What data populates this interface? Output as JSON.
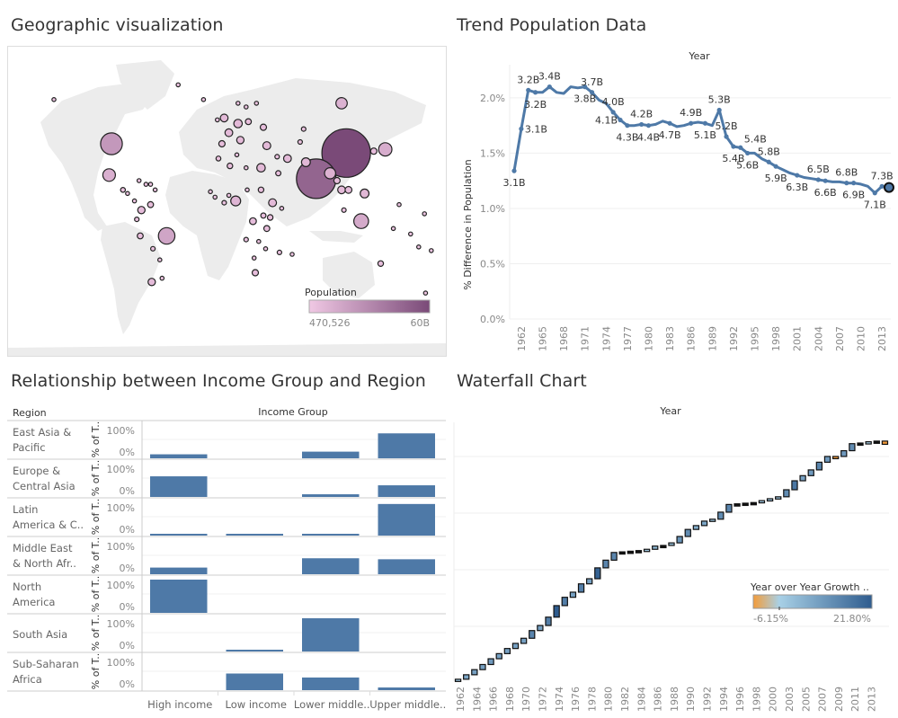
{
  "geo": {
    "title": "Geographic visualization",
    "legend": {
      "title": "Population",
      "min_label": "470,526",
      "max_label": "60B",
      "color_low": "#f0c8e4",
      "color_high": "#7a4a78"
    },
    "bubbles": [
      {
        "lon": -150,
        "lat": 64,
        "pop": 0.3
      },
      {
        "lon": -100,
        "lat": 40,
        "pop": 12
      },
      {
        "lon": -102,
        "lat": 23,
        "pop": 4
      },
      {
        "lon": -90,
        "lat": 15,
        "pop": 0.6
      },
      {
        "lon": -86,
        "lat": 13,
        "pop": 0.4
      },
      {
        "lon": -80,
        "lat": 9,
        "pop": 0.3
      },
      {
        "lon": -76,
        "lat": 20,
        "pop": 0.4
      },
      {
        "lon": -70,
        "lat": 18,
        "pop": 0.4
      },
      {
        "lon": -66,
        "lat": 18,
        "pop": 0.3
      },
      {
        "lon": -62,
        "lat": 15,
        "pop": 0.2
      },
      {
        "lon": -74,
        "lat": 4,
        "pop": 1.4
      },
      {
        "lon": -66,
        "lat": 7,
        "pop": 0.9
      },
      {
        "lon": -78,
        "lat": -1,
        "pop": 0.5
      },
      {
        "lon": -52,
        "lat": -10,
        "pop": 7
      },
      {
        "lon": -75,
        "lat": -10,
        "pop": 0.9
      },
      {
        "lon": -64,
        "lat": -17,
        "pop": 0.5
      },
      {
        "lon": -58,
        "lat": -23,
        "pop": 0.3
      },
      {
        "lon": -65,
        "lat": -35,
        "pop": 1.4
      },
      {
        "lon": -56,
        "lat": -33,
        "pop": 0.2
      },
      {
        "lon": -42,
        "lat": 72,
        "pop": 0.1
      },
      {
        "lon": -20,
        "lat": 64,
        "pop": 0.1
      },
      {
        "lon": -8,
        "lat": 53,
        "pop": 0.2
      },
      {
        "lon": 10,
        "lat": 62,
        "pop": 0.3
      },
      {
        "lon": 17,
        "lat": 60,
        "pop": 0.3
      },
      {
        "lon": 26,
        "lat": 62,
        "pop": 0.2
      },
      {
        "lon": -2,
        "lat": 54,
        "pop": 1.5
      },
      {
        "lon": 10,
        "lat": 51,
        "pop": 1.8
      },
      {
        "lon": 2,
        "lat": 46,
        "pop": 1.5
      },
      {
        "lon": 12,
        "lat": 42,
        "pop": 1.4
      },
      {
        "lon": -4,
        "lat": 40,
        "pop": 1.0
      },
      {
        "lon": 19,
        "lat": 52,
        "pop": 0.9
      },
      {
        "lon": 32,
        "lat": 49,
        "pop": 1.0
      },
      {
        "lon": 35,
        "lat": 39,
        "pop": 1.6
      },
      {
        "lon": 44,
        "lat": 33,
        "pop": 0.5
      },
      {
        "lon": 53,
        "lat": 32,
        "pop": 1.5
      },
      {
        "lon": 45,
        "lat": 24,
        "pop": 0.7
      },
      {
        "lon": 30,
        "lat": 27,
        "pop": 1.8
      },
      {
        "lon": 3,
        "lat": 28,
        "pop": 0.8
      },
      {
        "lon": -7,
        "lat": 32,
        "pop": 0.6
      },
      {
        "lon": 9,
        "lat": 34,
        "pop": 0.3
      },
      {
        "lon": 17,
        "lat": 27,
        "pop": 0.2
      },
      {
        "lon": 8,
        "lat": 9,
        "pop": 2.5
      },
      {
        "lon": -14,
        "lat": 14,
        "pop": 0.2
      },
      {
        "lon": -10,
        "lat": 11,
        "pop": 0.3
      },
      {
        "lon": -2,
        "lat": 8,
        "pop": 0.5
      },
      {
        "lon": 2,
        "lat": 12,
        "pop": 0.4
      },
      {
        "lon": 18,
        "lat": 15,
        "pop": 0.3
      },
      {
        "lon": 30,
        "lat": 15,
        "pop": 0.8
      },
      {
        "lon": 40,
        "lat": 8,
        "pop": 1.6
      },
      {
        "lon": 23,
        "lat": -2,
        "pop": 1.2
      },
      {
        "lon": 35,
        "lat": -6,
        "pop": 0.9
      },
      {
        "lon": 38,
        "lat": 0,
        "pop": 0.8
      },
      {
        "lon": 32,
        "lat": 1,
        "pop": 0.7
      },
      {
        "lon": 48,
        "lat": 5,
        "pop": 0.3
      },
      {
        "lon": 17,
        "lat": -12,
        "pop": 0.5
      },
      {
        "lon": 28,
        "lat": -13,
        "pop": 0.4
      },
      {
        "lon": 34,
        "lat": -17,
        "pop": 0.4
      },
      {
        "lon": 46,
        "lat": -19,
        "pop": 0.5
      },
      {
        "lon": 24,
        "lat": -22,
        "pop": 0.2
      },
      {
        "lon": 25,
        "lat": -30,
        "pop": 1.0
      },
      {
        "lon": 57,
        "lat": -20,
        "pop": 0.1
      },
      {
        "lon": 67,
        "lat": 48,
        "pop": 0.5
      },
      {
        "lon": 64,
        "lat": 41,
        "pop": 0.5
      },
      {
        "lon": 69,
        "lat": 30,
        "pop": 2.0
      },
      {
        "lon": 100,
        "lat": 62,
        "pop": 3.3
      },
      {
        "lon": 78,
        "lat": 21,
        "pop": 40
      },
      {
        "lon": 104,
        "lat": 35,
        "pop": 60
      },
      {
        "lon": 90,
        "lat": 24,
        "pop": 3.2
      },
      {
        "lon": 128,
        "lat": 36,
        "pop": 1.0
      },
      {
        "lon": 138,
        "lat": 37,
        "pop": 4.5
      },
      {
        "lon": 106,
        "lat": 15,
        "pop": 1.2
      },
      {
        "lon": 120,
        "lat": 13,
        "pop": 2.0
      },
      {
        "lon": 100,
        "lat": 15,
        "pop": 1.5
      },
      {
        "lon": 117,
        "lat": -2,
        "pop": 5.5
      },
      {
        "lon": 102,
        "lat": 4,
        "pop": 0.5
      },
      {
        "lon": 96,
        "lat": 20,
        "pop": 1.0
      },
      {
        "lon": 134,
        "lat": -25,
        "pop": 0.8
      },
      {
        "lon": 173,
        "lat": -41,
        "pop": 0.2
      },
      {
        "lon": 145,
        "lat": -6,
        "pop": 0.3
      },
      {
        "lon": 160,
        "lat": -9,
        "pop": 0.1
      },
      {
        "lon": 167,
        "lat": -16,
        "pop": 0.1
      },
      {
        "lon": 178,
        "lat": -18,
        "pop": 0.1
      },
      {
        "lon": 150,
        "lat": 7,
        "pop": 0.1
      },
      {
        "lon": 172,
        "lat": 2,
        "pop": 0.1
      }
    ]
  },
  "trend": {
    "title": "Trend Population Data",
    "header": "Year",
    "ylabel": "% Difference in Population"
  },
  "income": {
    "title": "Relationship between Income Group and Region",
    "row_header": "Region",
    "col_header": "Income Group",
    "axis_label": "% of T..",
    "axis_ticks": [
      "100%",
      "0%"
    ]
  },
  "waterfall": {
    "title": "Waterfall Chart",
    "header": "Year",
    "legend": {
      "title": "Year over Year Growth  ..",
      "min_label": "-6.15%",
      "max_label": "21.80%",
      "color_low": "#f39c3a",
      "color_mid": "#a8d0e6",
      "color_high": "#2f5c8e"
    }
  },
  "chart_data": [
    {
      "type": "line",
      "title": "Trend Population Data",
      "xlabel": "Year",
      "ylabel": "% Difference in Population",
      "ylim": [
        0,
        2.3
      ],
      "y_ticks": [
        "0.0%",
        "0.5%",
        "1.0%",
        "1.5%",
        "2.0%"
      ],
      "y_tick_values": [
        0,
        0.5,
        1.0,
        1.5,
        2.0
      ],
      "x_ticks": [
        "1962",
        "1965",
        "1968",
        "1971",
        "1974",
        "1977",
        "1980",
        "1983",
        "1986",
        "1989",
        "1992",
        "1995",
        "1998",
        "2001",
        "2004",
        "2007",
        "2010",
        "2013"
      ],
      "x": [
        1961,
        1962,
        1963,
        1964,
        1965,
        1966,
        1967,
        1968,
        1969,
        1970,
        1971,
        1972,
        1973,
        1974,
        1975,
        1976,
        1977,
        1978,
        1979,
        1980,
        1981,
        1982,
        1983,
        1984,
        1985,
        1986,
        1987,
        1988,
        1989,
        1990,
        1991,
        1992,
        1993,
        1994,
        1995,
        1996,
        1997,
        1998,
        1999,
        2000,
        2001,
        2002,
        2003,
        2004,
        2005,
        2006,
        2007,
        2008,
        2009,
        2010,
        2011,
        2012,
        2013,
        2014
      ],
      "values": [
        1.34,
        1.72,
        2.07,
        2.05,
        2.05,
        2.1,
        2.05,
        2.04,
        2.1,
        2.09,
        2.1,
        2.05,
        1.98,
        1.95,
        1.87,
        1.8,
        1.75,
        1.75,
        1.76,
        1.75,
        1.76,
        1.79,
        1.77,
        1.74,
        1.75,
        1.77,
        1.78,
        1.77,
        1.75,
        1.89,
        1.65,
        1.56,
        1.55,
        1.5,
        1.5,
        1.45,
        1.42,
        1.38,
        1.35,
        1.32,
        1.3,
        1.28,
        1.27,
        1.26,
        1.25,
        1.24,
        1.24,
        1.23,
        1.23,
        1.22,
        1.2,
        1.14,
        1.2,
        1.19
      ],
      "labels": [
        {
          "i": 0,
          "text": "3.1B",
          "pos": "below"
        },
        {
          "i": 1,
          "text": "3.1B",
          "pos": "right"
        },
        {
          "i": 2,
          "text": "3.2B",
          "pos": "above"
        },
        {
          "i": 3,
          "text": "3.2B",
          "pos": "below"
        },
        {
          "i": 5,
          "text": "3.4B",
          "pos": "above"
        },
        {
          "i": 10,
          "text": "3.8B",
          "pos": "below"
        },
        {
          "i": 11,
          "text": "3.7B",
          "pos": "above"
        },
        {
          "i": 14,
          "text": "4.0B",
          "pos": "above"
        },
        {
          "i": 15,
          "text": "4.1B",
          "pos": "left"
        },
        {
          "i": 16,
          "text": "4.3B",
          "pos": "below"
        },
        {
          "i": 18,
          "text": "4.2B",
          "pos": "above"
        },
        {
          "i": 19,
          "text": "4.4B",
          "pos": "below"
        },
        {
          "i": 22,
          "text": "4.7B",
          "pos": "below"
        },
        {
          "i": 25,
          "text": "4.9B",
          "pos": "above"
        },
        {
          "i": 27,
          "text": "5.1B",
          "pos": "below"
        },
        {
          "i": 29,
          "text": "5.3B",
          "pos": "above"
        },
        {
          "i": 30,
          "text": "5.2B",
          "pos": "above"
        },
        {
          "i": 31,
          "text": "5.4B",
          "pos": "below"
        },
        {
          "i": 32,
          "text": "5.4B",
          "pos": "aboveright"
        },
        {
          "i": 33,
          "text": "5.6B",
          "pos": "below"
        },
        {
          "i": 36,
          "text": "5.8B",
          "pos": "above"
        },
        {
          "i": 37,
          "text": "5.9B",
          "pos": "below"
        },
        {
          "i": 40,
          "text": "6.3B",
          "pos": "below"
        },
        {
          "i": 43,
          "text": "6.5B",
          "pos": "above"
        },
        {
          "i": 44,
          "text": "6.6B",
          "pos": "below"
        },
        {
          "i": 47,
          "text": "6.8B",
          "pos": "above"
        },
        {
          "i": 48,
          "text": "6.9B",
          "pos": "below"
        },
        {
          "i": 51,
          "text": "7.1B",
          "pos": "below"
        },
        {
          "i": 52,
          "text": "7.3B",
          "pos": "above"
        }
      ],
      "color": "#4e79a7"
    },
    {
      "type": "bar",
      "title": "Relationship between Income Group and Region",
      "xlabel": "Income Group",
      "ylabel": "% of T..",
      "ylim": [
        0,
        100
      ],
      "categories": [
        "High income",
        "Low income",
        "Lower middle..",
        "Upper middle.."
      ],
      "series": [
        {
          "name": "East Asia & Pacific",
          "values": [
            12,
            0,
            20,
            75
          ]
        },
        {
          "name": "Europe & Central Asia",
          "values": [
            62,
            0,
            8,
            35
          ]
        },
        {
          "name": "Latin America & C..",
          "values": [
            4,
            2,
            5,
            95
          ]
        },
        {
          "name": "Middle East & North Afr..",
          "values": [
            20,
            0,
            48,
            45
          ]
        },
        {
          "name": "North America",
          "values": [
            100,
            0,
            0,
            0
          ]
        },
        {
          "name": "South Asia",
          "values": [
            0,
            3,
            100,
            0
          ]
        },
        {
          "name": "Sub-Saharan Africa",
          "values": [
            0,
            50,
            38,
            8
          ]
        }
      ],
      "color": "#4e79a7"
    },
    {
      "type": "bar",
      "subtype": "waterfall",
      "title": "Waterfall Chart",
      "xlabel": "Year",
      "x_ticks": [
        "1962",
        "1964",
        "1966",
        "1968",
        "1970",
        "1972",
        "1974",
        "1976",
        "1978",
        "1980",
        "1982",
        "1984",
        "1986",
        "1988",
        "1990",
        "1992",
        "1994",
        "1996",
        "1998",
        "2000",
        "2003",
        "2005",
        "2007",
        "2009",
        "2011",
        "2013"
      ],
      "growth": [
        3,
        7,
        8,
        8,
        9,
        8,
        8,
        8,
        8,
        12,
        8,
        13,
        18,
        13,
        8,
        13,
        8,
        17,
        12,
        12,
        1,
        1,
        1,
        2,
        5,
        1,
        4,
        10,
        11,
        6,
        7,
        3,
        11,
        12,
        1,
        1,
        1,
        3,
        3,
        3,
        11,
        14,
        8,
        9,
        12,
        9,
        -3,
        9,
        11,
        1,
        2,
        1,
        -5
      ],
      "color_low": "#f39c3a",
      "color_high": "#2f5c8e"
    }
  ]
}
